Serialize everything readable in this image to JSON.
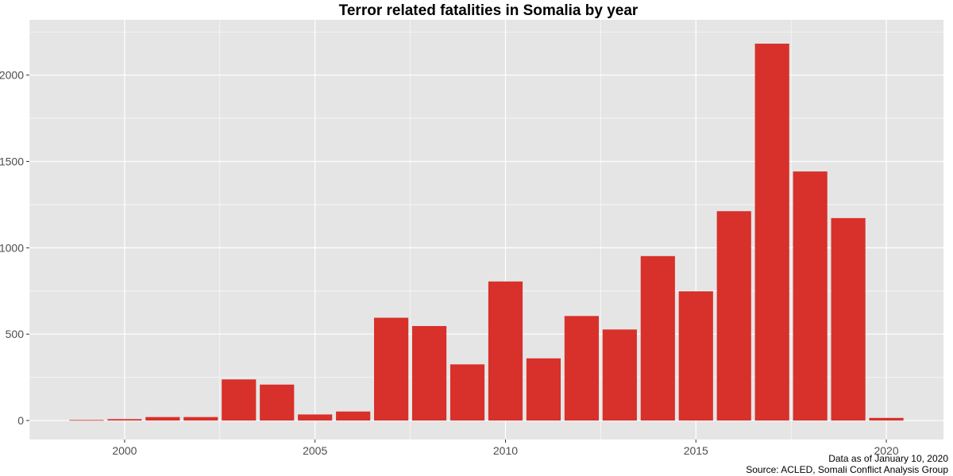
{
  "chart_data": {
    "type": "bar",
    "title": "Terror related fatalities in Somalia by year",
    "xlabel": "",
    "ylabel": "",
    "x": [
      1999,
      2000,
      2001,
      2002,
      2003,
      2004,
      2005,
      2006,
      2007,
      2008,
      2009,
      2010,
      2011,
      2012,
      2013,
      2014,
      2015,
      2016,
      2017,
      2018,
      2019,
      2020
    ],
    "values": [
      3,
      8,
      20,
      20,
      238,
      208,
      35,
      52,
      595,
      547,
      325,
      805,
      360,
      605,
      527,
      952,
      748,
      1212,
      2182,
      1442,
      1172,
      15
    ],
    "xlim": [
      1997.5,
      2021.5
    ],
    "ylim": [
      -110,
      2320
    ],
    "xticks": [
      2000,
      2005,
      2010,
      2015,
      2020
    ],
    "xtick_labels": [
      "2000",
      "2005",
      "2010",
      "2015",
      "2020"
    ],
    "yticks": [
      0,
      500,
      1000,
      1500,
      2000
    ],
    "ytick_labels": [
      "0",
      "500",
      "1000",
      "1500",
      "2000"
    ],
    "bar_color": "#d8302a",
    "panel_color": "#e5e5e5",
    "grid_color": "#ffffff",
    "grid": true,
    "caption_line1": "Data as of January 10, 2020",
    "caption_line2": "Source: ACLED, Somali Conflict Analysis Group"
  }
}
